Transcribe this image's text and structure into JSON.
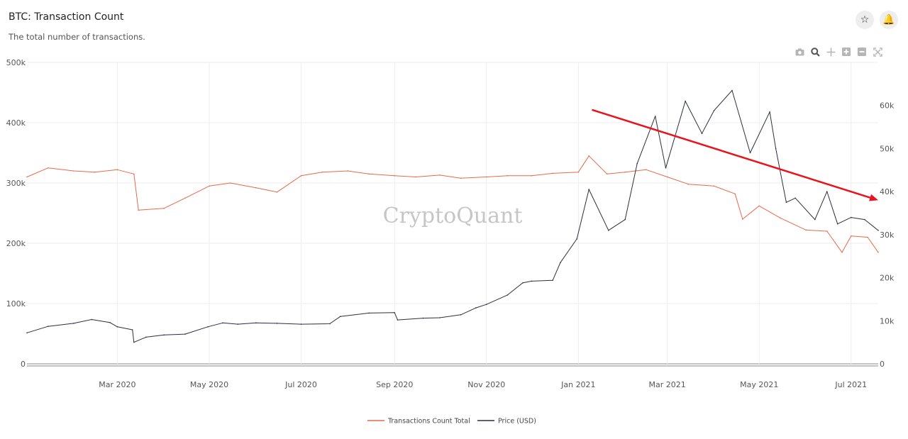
{
  "header": {
    "title": "BTC: Transaction Count",
    "subtitle": "The total number of transactions.",
    "star_icon": "star-icon",
    "bell_icon": "bell-icon"
  },
  "modebar": {
    "icons": [
      "camera-icon",
      "zoom-icon",
      "pan-icon",
      "zoom-in-icon",
      "zoom-out-icon",
      "autoscale-icon"
    ]
  },
  "watermark": "CryptoQuant",
  "colors": {
    "transactions": "#e8694a",
    "price": "#2b2f3a",
    "trend_arrow": "#e8141c",
    "grid": "#eeeeee"
  },
  "chart_data": {
    "type": "line",
    "x_start": "2020-01-01",
    "x_end": "2021-07-19",
    "x_ticks": [
      {
        "date": "2020-03-01",
        "label": "Mar 2020"
      },
      {
        "date": "2020-05-01",
        "label": "May 2020"
      },
      {
        "date": "2020-07-01",
        "label": "Jul 2020"
      },
      {
        "date": "2020-09-01",
        "label": "Sep 2020"
      },
      {
        "date": "2020-11-01",
        "label": "Nov 2020"
      },
      {
        "date": "2021-01-01",
        "label": "Jan 2021"
      },
      {
        "date": "2021-03-01",
        "label": "Mar 2021"
      },
      {
        "date": "2021-05-01",
        "label": "May 2021"
      },
      {
        "date": "2021-07-01",
        "label": "Jul 2021"
      }
    ],
    "y_left": {
      "range": [
        0,
        500000
      ],
      "ticks": [
        0,
        100000,
        200000,
        300000,
        400000,
        500000
      ],
      "tick_labels": [
        "0",
        "100k",
        "200k",
        "300k",
        "400k",
        "500k"
      ]
    },
    "y_right": {
      "range": [
        0,
        70000
      ],
      "ticks": [
        0,
        10000,
        20000,
        30000,
        40000,
        50000,
        60000
      ],
      "tick_labels": [
        "0",
        "10k",
        "20k",
        "30k",
        "40k",
        "50k",
        "60k"
      ]
    },
    "grid": true,
    "legend_position": "bottom-center",
    "series": [
      {
        "name": "Transactions Count Total",
        "axis": "left",
        "color": "#e8694a",
        "points": [
          [
            "2020-01-01",
            310000
          ],
          [
            "2020-01-15",
            325000
          ],
          [
            "2020-02-01",
            320000
          ],
          [
            "2020-02-15",
            318000
          ],
          [
            "2020-03-01",
            322000
          ],
          [
            "2020-03-12",
            315000
          ],
          [
            "2020-03-15",
            255000
          ],
          [
            "2020-04-01",
            258000
          ],
          [
            "2020-04-15",
            275000
          ],
          [
            "2020-05-01",
            295000
          ],
          [
            "2020-05-15",
            300000
          ],
          [
            "2020-06-01",
            292000
          ],
          [
            "2020-06-15",
            285000
          ],
          [
            "2020-07-01",
            312000
          ],
          [
            "2020-07-15",
            318000
          ],
          [
            "2020-08-01",
            320000
          ],
          [
            "2020-08-15",
            315000
          ],
          [
            "2020-09-01",
            312000
          ],
          [
            "2020-09-15",
            310000
          ],
          [
            "2020-10-01",
            313000
          ],
          [
            "2020-10-15",
            308000
          ],
          [
            "2020-11-01",
            310000
          ],
          [
            "2020-11-15",
            312000
          ],
          [
            "2020-12-01",
            312000
          ],
          [
            "2020-12-15",
            316000
          ],
          [
            "2021-01-01",
            318000
          ],
          [
            "2021-01-08",
            345000
          ],
          [
            "2021-01-20",
            315000
          ],
          [
            "2021-02-01",
            318000
          ],
          [
            "2021-02-15",
            322000
          ],
          [
            "2021-03-01",
            310000
          ],
          [
            "2021-03-15",
            298000
          ],
          [
            "2021-04-01",
            295000
          ],
          [
            "2021-04-15",
            282000
          ],
          [
            "2021-04-20",
            240000
          ],
          [
            "2021-05-01",
            262000
          ],
          [
            "2021-05-15",
            242000
          ],
          [
            "2021-06-01",
            222000
          ],
          [
            "2021-06-15",
            220000
          ],
          [
            "2021-06-25",
            185000
          ],
          [
            "2021-07-01",
            212000
          ],
          [
            "2021-07-12",
            210000
          ],
          [
            "2021-07-19",
            185000
          ]
        ]
      },
      {
        "name": "Price (USD)",
        "axis": "right",
        "color": "#2b2f3a",
        "points": [
          [
            "2020-01-01",
            7200
          ],
          [
            "2020-01-15",
            8700
          ],
          [
            "2020-02-01",
            9400
          ],
          [
            "2020-02-13",
            10300
          ],
          [
            "2020-02-25",
            9600
          ],
          [
            "2020-03-01",
            8600
          ],
          [
            "2020-03-11",
            7900
          ],
          [
            "2020-03-12",
            5000
          ],
          [
            "2020-03-20",
            6200
          ],
          [
            "2020-04-01",
            6700
          ],
          [
            "2020-04-15",
            6900
          ],
          [
            "2020-04-30",
            8600
          ],
          [
            "2020-05-10",
            9500
          ],
          [
            "2020-05-20",
            9200
          ],
          [
            "2020-06-01",
            9500
          ],
          [
            "2020-06-15",
            9400
          ],
          [
            "2020-07-01",
            9200
          ],
          [
            "2020-07-20",
            9300
          ],
          [
            "2020-07-27",
            11000
          ],
          [
            "2020-08-15",
            11800
          ],
          [
            "2020-09-01",
            11900
          ],
          [
            "2020-09-03",
            10200
          ],
          [
            "2020-09-20",
            10600
          ],
          [
            "2020-10-01",
            10700
          ],
          [
            "2020-10-15",
            11400
          ],
          [
            "2020-10-25",
            13000
          ],
          [
            "2020-11-01",
            13800
          ],
          [
            "2020-11-15",
            16000
          ],
          [
            "2020-11-25",
            18800
          ],
          [
            "2020-12-01",
            19200
          ],
          [
            "2020-12-15",
            19400
          ],
          [
            "2020-12-20",
            23500
          ],
          [
            "2020-12-31",
            29000
          ],
          [
            "2021-01-08",
            40500
          ],
          [
            "2021-01-21",
            31000
          ],
          [
            "2021-02-01",
            33500
          ],
          [
            "2021-02-09",
            46500
          ],
          [
            "2021-02-21",
            57500
          ],
          [
            "2021-02-28",
            45500
          ],
          [
            "2021-03-13",
            61000
          ],
          [
            "2021-03-24",
            53500
          ],
          [
            "2021-04-01",
            58800
          ],
          [
            "2021-04-13",
            63500
          ],
          [
            "2021-04-25",
            49000
          ],
          [
            "2021-05-08",
            58500
          ],
          [
            "2021-05-12",
            50000
          ],
          [
            "2021-05-19",
            37500
          ],
          [
            "2021-05-25",
            38500
          ],
          [
            "2021-06-07",
            33500
          ],
          [
            "2021-06-15",
            40000
          ],
          [
            "2021-06-22",
            32500
          ],
          [
            "2021-07-01",
            34000
          ],
          [
            "2021-07-10",
            33500
          ],
          [
            "2021-07-19",
            31000
          ]
        ]
      }
    ],
    "annotations": [
      {
        "type": "arrow",
        "color": "#e8141c",
        "from": {
          "date": "2021-01-10",
          "y_right": 59000
        },
        "to": {
          "date": "2021-07-19",
          "y_right": 38000
        }
      }
    ]
  },
  "legend": {
    "items": [
      {
        "label": "Transactions Count Total",
        "color": "#e8694a"
      },
      {
        "label": "Price (USD)",
        "color": "#2b2f3a"
      }
    ]
  }
}
